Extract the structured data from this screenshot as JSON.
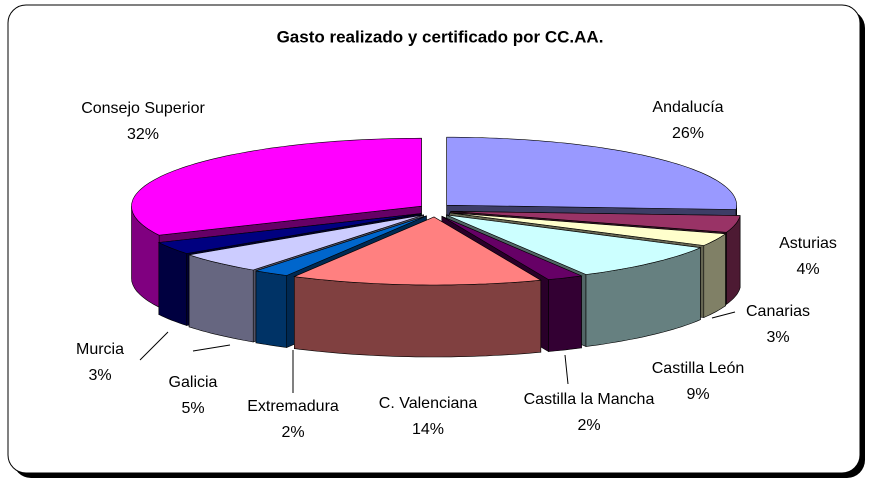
{
  "chart_data": {
    "type": "pie",
    "title": "Gasto realizado y certificado por CC.AA.",
    "categories": [
      "Andalucía",
      "Asturias",
      "Canarias",
      "Castilla León",
      "Castilla la Mancha",
      "C. Valenciana",
      "Extremadura",
      "Galicia",
      "Murcia",
      "Consejo Superior"
    ],
    "values": [
      26,
      4,
      3,
      9,
      2,
      14,
      2,
      5,
      3,
      32
    ],
    "value_labels": [
      "26%",
      "4%",
      "3%",
      "9%",
      "2%",
      "14%",
      "2%",
      "5%",
      "3%",
      "32%"
    ],
    "colors": [
      "#9999ff",
      "#993366",
      "#ffffcc",
      "#ccffff",
      "#660066",
      "#ff8080",
      "#0066cc",
      "#ccccff",
      "#000080",
      "#ff00ff"
    ]
  }
}
